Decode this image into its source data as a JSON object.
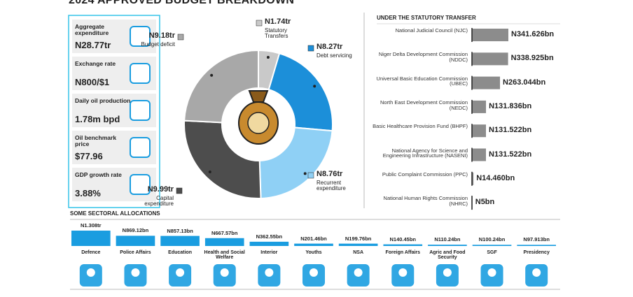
{
  "title": "2024 APPROVED BUDGET BREAKDOWN",
  "stats": [
    {
      "label": "Aggregate expenditure",
      "value": "N28.77tr"
    },
    {
      "label": "Exchange rate",
      "value": "N800/$1"
    },
    {
      "label": "Daily oil production",
      "value": "1.78m bpd"
    },
    {
      "label": "Oil benchmark price",
      "value": "$77.96"
    },
    {
      "label": "GDP growth rate",
      "value": "3.88%"
    }
  ],
  "chart_data": [
    {
      "type": "donut",
      "categories": [
        "Statutory Transfers",
        "Debt servicing",
        "Recurrent expenditure",
        "Capital expenditure",
        "Budget deficit"
      ],
      "values": [
        1.74,
        8.27,
        8.76,
        9.99,
        9.18
      ],
      "value_labels": [
        "N1.74tr",
        "N8.27tr",
        "N8.76tr",
        "N9.99tr",
        "N9.18tr"
      ],
      "colors": [
        "#c9c9c9",
        "#1c8fd9",
        "#8fd0f5",
        "#4d4d4d",
        "#a8a8a8"
      ]
    },
    {
      "type": "hbar",
      "title": "UNDER THE STATUTORY TRANSFER",
      "categories": [
        "National Judicial Council (NJC)",
        "Niger Delta Development Commission (NDDC)",
        "Universal Basic Education Commission (UBEC)",
        "North East Development Commission (NEDC)",
        "Basic Healthcare Provision Fund (BHPF)",
        "National Agency for Science and Engineering Infrastructure (NASENI)",
        "Public Complaint Commission (PPC)",
        "National Human Rights Commission (NHRC)"
      ],
      "values": [
        341.626,
        338.925,
        263.044,
        131.836,
        131.522,
        131.522,
        14.46,
        5
      ],
      "value_labels": [
        "N341.626bn",
        "N338.925bn",
        "N263.044bn",
        "N131.836bn",
        "N131.522bn",
        "N131.522bn",
        "N14.460bn",
        "N5bn"
      ],
      "color": "#8c8c8c"
    },
    {
      "type": "bar",
      "title": "SOME SECTORAL ALLOCATIONS",
      "categories": [
        "Defence",
        "Police Affairs",
        "Education",
        "Health and Social Welfare",
        "Interior",
        "Youths",
        "NSA",
        "Foreign Affairs",
        "Agric and Food Security",
        "SGF",
        "Presidency"
      ],
      "values": [
        1308,
        869.12,
        857.13,
        667.57,
        362.55,
        201.46,
        199.76,
        140.45,
        110.24,
        100.24,
        97.913
      ],
      "value_labels": [
        "N1.308tr",
        "N869.12bn",
        "N857.13bn",
        "N667.57bn",
        "N362.55bn",
        "N201.46bn",
        "N199.76bn",
        "N140.45bn",
        "N110.24bn",
        "N100.24bn",
        "N97.913bn"
      ],
      "color": "#1a9de0"
    }
  ]
}
